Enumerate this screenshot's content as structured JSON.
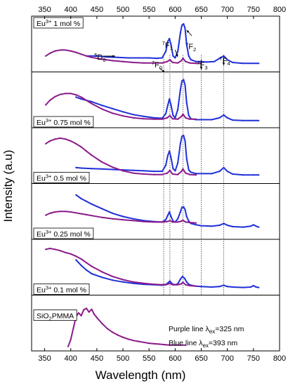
{
  "chart_data": {
    "type": "line",
    "xlabel": "Wavelength (nm)",
    "ylabel": "Intensity (a.u)",
    "xlim": [
      325,
      800
    ],
    "x_ticks": [
      350,
      400,
      450,
      500,
      550,
      600,
      650,
      700,
      750,
      800
    ],
    "series_colors": {
      "purple": "#8B1A8B",
      "blue": "#1F2FD9"
    },
    "guide_lines_nm": [
      578,
      590,
      615,
      650,
      693
    ],
    "legend_lines": [
      {
        "text": "Purple line λ",
        "sub": "ex",
        "rest": "=325 nm"
      },
      {
        "text": "Blue line λ",
        "sub": "ex",
        "rest": "=393 nm"
      }
    ],
    "annotations": [
      {
        "label": "5D0",
        "x_nm": 456
      },
      {
        "label": "7F0",
        "x_nm": 565
      },
      {
        "label": "7F1",
        "x_nm": 585
      },
      {
        "label": "7F2",
        "x_nm": 630
      },
      {
        "label": "7F3",
        "x_nm": 652
      },
      {
        "label": "7F4",
        "x_nm": 695
      }
    ],
    "panels": [
      {
        "label_sup": "3+",
        "label_pre": "Eu",
        "label_post": " 1 mol %",
        "series": [
          {
            "color": "blue",
            "x": [
              430,
              450,
              470,
              490,
              510,
              530,
              550,
              565,
              575,
              582,
              586,
              589,
              592,
              596,
              600,
              605,
              610,
              613,
              616,
              619,
              622,
              626,
              630,
              640,
              650,
              660,
              675,
              685,
              693,
              700,
              710,
              730,
              750,
              760
            ],
            "y": [
              0.3,
              0.3,
              0.28,
              0.27,
              0.26,
              0.26,
              0.26,
              0.25,
              0.26,
              0.4,
              0.62,
              0.68,
              0.55,
              0.3,
              0.26,
              0.4,
              0.8,
              0.97,
              1.0,
              0.9,
              0.55,
              0.3,
              0.22,
              0.18,
              0.18,
              0.17,
              0.18,
              0.25,
              0.3,
              0.22,
              0.16,
              0.14,
              0.14,
              0.14
            ]
          },
          {
            "color": "purple",
            "x": [
              352,
              360,
              370,
              380,
              390,
              400,
              410,
              420,
              430,
              440,
              460,
              480,
              500,
              520,
              540,
              560,
              575,
              585,
              590,
              595,
              605,
              612,
              615,
              620,
              628,
              640,
              650
            ],
            "y": [
              0.3,
              0.36,
              0.41,
              0.43,
              0.43,
              0.41,
              0.38,
              0.34,
              0.3,
              0.27,
              0.23,
              0.2,
              0.18,
              0.16,
              0.15,
              0.15,
              0.15,
              0.18,
              0.22,
              0.16,
              0.15,
              0.2,
              0.25,
              0.18,
              0.15,
              0.14,
              0.14
            ]
          }
        ]
      },
      {
        "label_sup": "3+",
        "label_pre": "Eu",
        "label_post": " 0.75 mol %",
        "series": [
          {
            "color": "blue",
            "x": [
              410,
              420,
              440,
              460,
              480,
              500,
              520,
              540,
              560,
              575,
              582,
              586,
              589,
              592,
              596,
              600,
              605,
              610,
              613,
              616,
              619,
              622,
              626,
              630,
              640,
              650,
              670,
              685,
              693,
              700,
              710,
              730,
              750,
              760
            ],
            "y": [
              0.62,
              0.58,
              0.52,
              0.44,
              0.37,
              0.3,
              0.24,
              0.2,
              0.17,
              0.16,
              0.26,
              0.45,
              0.58,
              0.45,
              0.22,
              0.17,
              0.35,
              0.78,
              0.97,
              1.0,
              0.88,
              0.5,
              0.22,
              0.15,
              0.13,
              0.13,
              0.13,
              0.17,
              0.23,
              0.17,
              0.12,
              0.11,
              0.11,
              0.11
            ]
          },
          {
            "color": "purple",
            "x": [
              352,
              360,
              370,
              380,
              390,
              400,
              410,
              420,
              430,
              440,
              460,
              480,
              500,
              520,
              540,
              560,
              575,
              585,
              590,
              595,
              605,
              612,
              615,
              620,
              628,
              640
            ],
            "y": [
              0.45,
              0.55,
              0.63,
              0.68,
              0.7,
              0.7,
              0.67,
              0.62,
              0.55,
              0.48,
              0.36,
              0.27,
              0.21,
              0.17,
              0.15,
              0.14,
              0.14,
              0.17,
              0.22,
              0.15,
              0.14,
              0.2,
              0.25,
              0.17,
              0.14,
              0.14
            ]
          }
        ]
      },
      {
        "label_sup": "3+",
        "label_pre": "Eu",
        "label_post": " 0.5 mol %",
        "series": [
          {
            "color": "blue",
            "x": [
              410,
              420,
              440,
              460,
              480,
              500,
              520,
              540,
              560,
              575,
              582,
              586,
              589,
              592,
              596,
              600,
              605,
              610,
              613,
              616,
              619,
              622,
              626,
              630,
              640,
              650,
              670,
              685,
              693,
              700,
              710,
              730,
              750,
              760
            ],
            "y": [
              0.3,
              0.29,
              0.28,
              0.27,
              0.26,
              0.25,
              0.24,
              0.23,
              0.22,
              0.22,
              0.35,
              0.57,
              0.66,
              0.52,
              0.28,
              0.23,
              0.4,
              0.82,
              0.98,
              1.0,
              0.88,
              0.5,
              0.25,
              0.2,
              0.17,
              0.17,
              0.17,
              0.22,
              0.3,
              0.22,
              0.16,
              0.14,
              0.14,
              0.14
            ]
          },
          {
            "color": "purple",
            "x": [
              352,
              360,
              370,
              380,
              390,
              400,
              410,
              420,
              430,
              440,
              460,
              480,
              500,
              520,
              540,
              560,
              575,
              585,
              590,
              595,
              605,
              612,
              615,
              620,
              628,
              640
            ],
            "y": [
              0.82,
              0.88,
              0.92,
              0.94,
              0.92,
              0.88,
              0.82,
              0.75,
              0.66,
              0.57,
              0.42,
              0.31,
              0.23,
              0.18,
              0.16,
              0.15,
              0.15,
              0.18,
              0.24,
              0.16,
              0.15,
              0.22,
              0.27,
              0.18,
              0.15,
              0.14
            ]
          }
        ]
      },
      {
        "label_sup": "3+",
        "label_pre": "Eu",
        "label_post": " 0.25 mol %",
        "series": [
          {
            "color": "blue",
            "x": [
              410,
              420,
              430,
              440,
              460,
              480,
              500,
              520,
              540,
              560,
              575,
              582,
              586,
              589,
              592,
              596,
              600,
              605,
              610,
              613,
              616,
              619,
              622,
              626,
              630,
              640,
              650,
              670,
              685,
              693,
              700,
              710,
              730,
              745,
              750,
              755,
              760
            ],
            "y": [
              0.92,
              0.84,
              0.78,
              0.72,
              0.62,
              0.52,
              0.45,
              0.4,
              0.36,
              0.34,
              0.33,
              0.38,
              0.48,
              0.55,
              0.45,
              0.35,
              0.33,
              0.4,
              0.55,
              0.65,
              0.66,
              0.6,
              0.45,
              0.35,
              0.3,
              0.27,
              0.25,
              0.24,
              0.26,
              0.3,
              0.26,
              0.23,
              0.22,
              0.24,
              0.27,
              0.24,
              0.22
            ]
          },
          {
            "color": "purple",
            "x": [
              352,
              360,
              370,
              380,
              390,
              400,
              410,
              420,
              430,
              440,
              460,
              480,
              500,
              520,
              540,
              560,
              575,
              585,
              590,
              595,
              605,
              612,
              615,
              620,
              628,
              640
            ],
            "y": [
              0.48,
              0.52,
              0.55,
              0.56,
              0.56,
              0.55,
              0.53,
              0.51,
              0.49,
              0.47,
              0.43,
              0.4,
              0.38,
              0.36,
              0.34,
              0.33,
              0.33,
              0.34,
              0.36,
              0.33,
              0.33,
              0.35,
              0.37,
              0.33,
              0.32,
              0.31
            ]
          }
        ]
      },
      {
        "label_sup": "3+",
        "label_pre": "Eu",
        "label_post": " 0.1 mol %",
        "series": [
          {
            "color": "blue",
            "x": [
              410,
              420,
              430,
              440,
              460,
              480,
              500,
              520,
              540,
              560,
              575,
              582,
              586,
              590,
              594,
              600,
              605,
              610,
              614,
              618,
              622,
              626,
              630,
              640,
              650,
              670,
              685,
              693,
              700,
              710,
              730,
              745,
              750,
              755,
              760
            ],
            "y": [
              0.72,
              0.6,
              0.5,
              0.42,
              0.34,
              0.28,
              0.24,
              0.21,
              0.19,
              0.18,
              0.17,
              0.18,
              0.22,
              0.26,
              0.2,
              0.18,
              0.2,
              0.3,
              0.36,
              0.32,
              0.24,
              0.19,
              0.17,
              0.15,
              0.14,
              0.13,
              0.14,
              0.17,
              0.14,
              0.13,
              0.12,
              0.13,
              0.16,
              0.13,
              0.12
            ]
          },
          {
            "color": "purple",
            "x": [
              352,
              360,
              370,
              380,
              390,
              400,
              410,
              420,
              430,
              440,
              460,
              480,
              500,
              520,
              540,
              560,
              575,
              585,
              590,
              595,
              605,
              612,
              615,
              620,
              628,
              640
            ],
            "y": [
              0.95,
              0.97,
              0.95,
              0.92,
              0.88,
              0.85,
              0.8,
              0.74,
              0.66,
              0.58,
              0.46,
              0.36,
              0.29,
              0.24,
              0.21,
              0.19,
              0.18,
              0.19,
              0.21,
              0.18,
              0.18,
              0.2,
              0.23,
              0.18,
              0.16,
              0.15
            ]
          }
        ]
      },
      {
        "label_pre": "SiO",
        "label_sub": "2",
        "label_post": "PMMA",
        "series": [
          {
            "color": "purple",
            "x": [
              395,
              400,
              405,
              410,
              415,
              420,
              425,
              430,
              435,
              440,
              445,
              450,
              460,
              470,
              480,
              490,
              500,
              510,
              520,
              530,
              540,
              550,
              560,
              570,
              580,
              590,
              600,
              610,
              620
            ],
            "y": [
              0.05,
              0.2,
              0.45,
              0.7,
              0.78,
              0.72,
              0.85,
              0.88,
              0.8,
              0.86,
              0.75,
              0.68,
              0.55,
              0.44,
              0.36,
              0.3,
              0.25,
              0.21,
              0.18,
              0.16,
              0.14,
              0.12,
              0.11,
              0.1,
              0.09,
              0.08,
              0.08,
              0.08,
              0.08
            ]
          }
        ]
      }
    ]
  }
}
